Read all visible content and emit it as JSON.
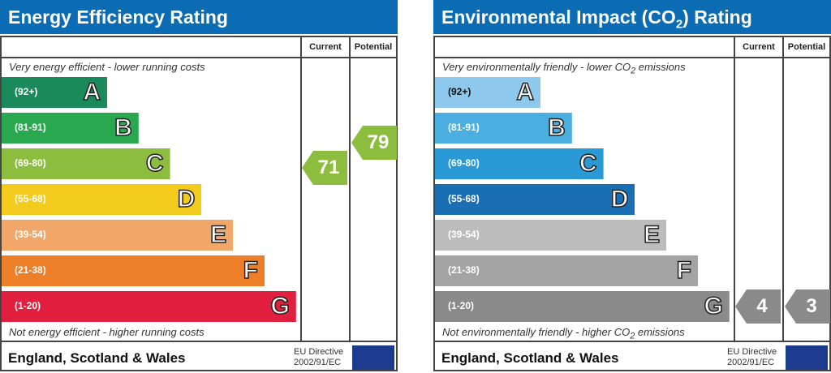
{
  "chart_data": [
    {
      "type": "bar",
      "title": "Energy Efficiency Rating",
      "columns": [
        "Current",
        "Potential"
      ],
      "top_note": "Very energy efficient - lower running costs",
      "bottom_note": "Not energy efficient - higher running costs",
      "bands": [
        {
          "range": "(92+)",
          "letter": "A",
          "color": "#1a8a5a"
        },
        {
          "range": "(81-91)",
          "letter": "B",
          "color": "#2aa84f"
        },
        {
          "range": "(69-80)",
          "letter": "C",
          "color": "#8cbd3f"
        },
        {
          "range": "(55-68)",
          "letter": "D",
          "color": "#f3cb1c"
        },
        {
          "range": "(39-54)",
          "letter": "E",
          "color": "#f2a76a"
        },
        {
          "range": "(21-38)",
          "letter": "F",
          "color": "#ec7f28"
        },
        {
          "range": "(1-20)",
          "letter": "G",
          "color": "#e0203e"
        }
      ],
      "current": {
        "value": "71",
        "band": "C",
        "color": "#8cbd3f"
      },
      "potential": {
        "value": "79",
        "band": "C",
        "color": "#8cbd3f"
      },
      "footer": "England, Scotland & Wales",
      "directive": [
        "EU Directive",
        "2002/91/EC"
      ]
    },
    {
      "type": "bar",
      "title": "Environmental Impact (CO",
      "title_sub": "2",
      "title_end": ") Rating",
      "columns": [
        "Current",
        "Potential"
      ],
      "top_note": "Very environmentally friendly - lower CO",
      "top_note_sub": "2",
      "top_note_end": " emissions",
      "bottom_note": "Not environmentally friendly - higher CO",
      "bottom_note_sub": "2",
      "bottom_note_end": " emissions",
      "bands": [
        {
          "range": "(92+)",
          "letter": "A",
          "color": "#8ec8ec"
        },
        {
          "range": "(81-91)",
          "letter": "B",
          "color": "#4aaee0"
        },
        {
          "range": "(69-80)",
          "letter": "C",
          "color": "#2a9ad6"
        },
        {
          "range": "(55-68)",
          "letter": "D",
          "color": "#1a6eb4"
        },
        {
          "range": "(39-54)",
          "letter": "E",
          "color": "#bcbcbc"
        },
        {
          "range": "(21-38)",
          "letter": "F",
          "color": "#a4a4a4"
        },
        {
          "range": "(1-20)",
          "letter": "G",
          "color": "#8a8a8a"
        }
      ],
      "current": {
        "value": "4",
        "band": "G",
        "color": "#8a8a8a"
      },
      "potential": {
        "value": "3",
        "band": "G",
        "color": "#8a8a8a"
      },
      "footer": "England, Scotland & Wales",
      "directive": [
        "EU Directive",
        "2002/91/EC"
      ]
    }
  ]
}
